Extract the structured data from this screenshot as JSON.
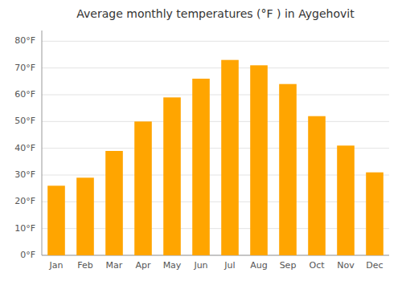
{
  "chart_data": {
    "type": "bar",
    "title": "Average monthly temperatures (°F ) in Aygehovit",
    "categories": [
      "Jan",
      "Feb",
      "Mar",
      "Apr",
      "May",
      "Jun",
      "Jul",
      "Aug",
      "Sep",
      "Oct",
      "Nov",
      "Dec"
    ],
    "values": [
      26,
      29,
      39,
      50,
      59,
      66,
      73,
      71,
      64,
      52,
      41,
      31
    ],
    "color": "#FFA500",
    "ylim": [
      0,
      84
    ],
    "yticks": [
      {
        "value": 0,
        "label": "0°F"
      },
      {
        "value": 10,
        "label": "10°F"
      },
      {
        "value": 20,
        "label": "20°F"
      },
      {
        "value": 30,
        "label": "30°F"
      },
      {
        "value": 40,
        "label": "40°F"
      },
      {
        "value": 50,
        "label": "50°F"
      },
      {
        "value": 60,
        "label": "60°F"
      },
      {
        "value": 70,
        "label": "70°F"
      },
      {
        "value": 80,
        "label": "80°F"
      }
    ],
    "grid": true
  }
}
